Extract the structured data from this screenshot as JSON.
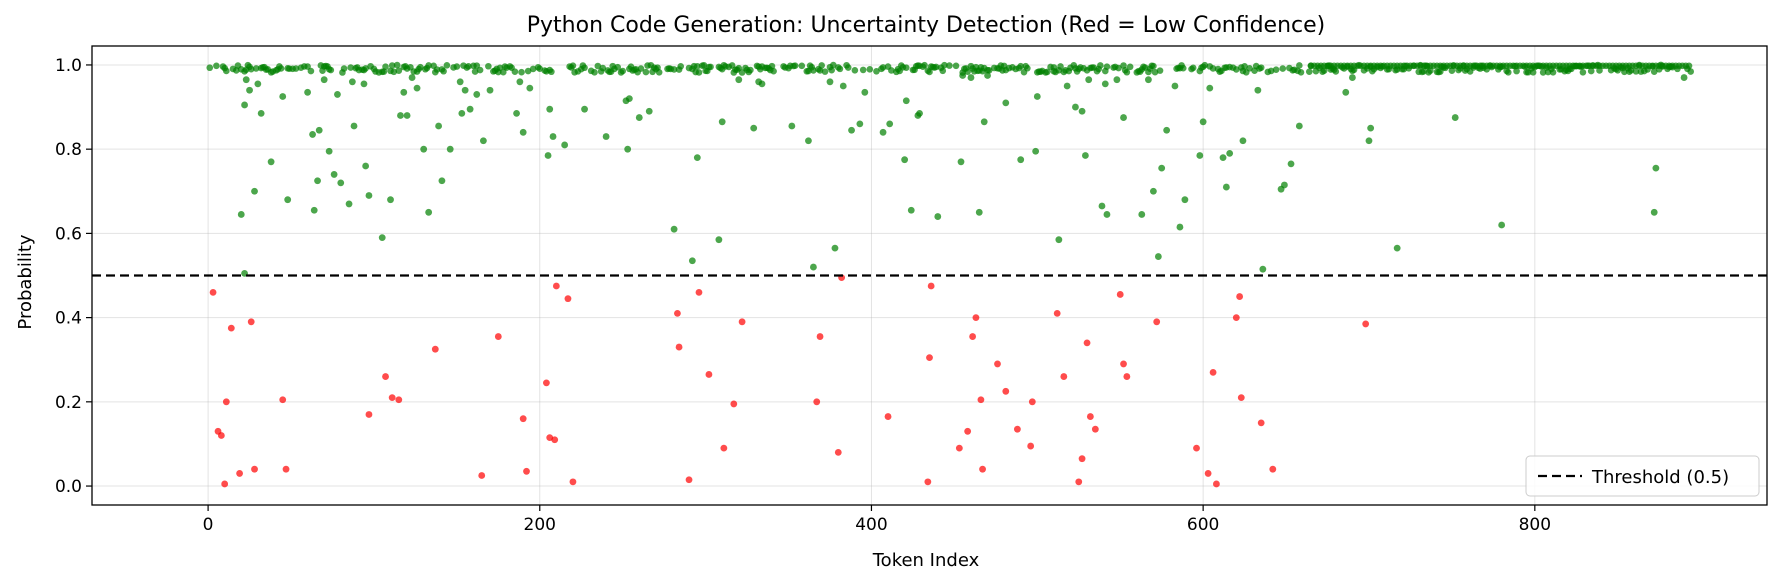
{
  "chart_data": {
    "type": "scatter",
    "title": "Python Code Generation: Uncertainty Detection (Red = Low Confidence)",
    "xlabel": "Token Index",
    "ylabel": "Probability",
    "xlim": [
      -70,
      940
    ],
    "ylim": [
      -0.045,
      1.045
    ],
    "xticks": [
      0,
      200,
      400,
      600,
      800
    ],
    "yticks": [
      0.0,
      0.2,
      0.4,
      0.6,
      0.8,
      1.0
    ],
    "xtick_labels": [
      "0",
      "200",
      "400",
      "600",
      "800"
    ],
    "ytick_labels": [
      "0.0",
      "0.2",
      "0.4",
      "0.6",
      "0.8",
      "1.0"
    ],
    "grid": true,
    "threshold": {
      "value": 0.5,
      "label": "Threshold (0.5)",
      "style": "dashed",
      "color": "#000000"
    },
    "legend": {
      "placement": "lower-right",
      "entries": [
        "Threshold (0.5)"
      ]
    },
    "colors": {
      "high": "#008000",
      "low": "#ff0000"
    },
    "point_count": 900,
    "series": [
      {
        "color": "#008000",
        "points": [
          [
            22,
            0.905
          ],
          [
            23,
            0.965
          ],
          [
            25,
            0.94
          ],
          [
            28,
            0.7
          ],
          [
            30,
            0.955
          ],
          [
            32,
            0.885
          ],
          [
            38,
            0.77
          ],
          [
            45,
            0.925
          ],
          [
            48,
            0.68
          ],
          [
            20,
            0.645
          ],
          [
            22,
            0.505
          ],
          [
            60,
            0.935
          ],
          [
            63,
            0.835
          ],
          [
            64,
            0.655
          ],
          [
            66,
            0.725
          ],
          [
            67,
            0.845
          ],
          [
            70,
            0.965
          ],
          [
            73,
            0.795
          ],
          [
            76,
            0.74
          ],
          [
            78,
            0.93
          ],
          [
            80,
            0.72
          ],
          [
            85,
            0.67
          ],
          [
            87,
            0.96
          ],
          [
            88,
            0.855
          ],
          [
            94,
            0.955
          ],
          [
            95,
            0.76
          ],
          [
            97,
            0.69
          ],
          [
            105,
            0.59
          ],
          [
            110,
            0.68
          ],
          [
            116,
            0.88
          ],
          [
            118,
            0.935
          ],
          [
            120,
            0.88
          ],
          [
            123,
            0.97
          ],
          [
            126,
            0.945
          ],
          [
            130,
            0.8
          ],
          [
            133,
            0.65
          ],
          [
            139,
            0.855
          ],
          [
            141,
            0.725
          ],
          [
            146,
            0.8
          ],
          [
            152,
            0.96
          ],
          [
            153,
            0.885
          ],
          [
            155,
            0.94
          ],
          [
            158,
            0.895
          ],
          [
            162,
            0.93
          ],
          [
            166,
            0.82
          ],
          [
            170,
            0.94
          ],
          [
            186,
            0.885
          ],
          [
            188,
            0.96
          ],
          [
            190,
            0.84
          ],
          [
            194,
            0.945
          ],
          [
            205,
            0.785
          ],
          [
            206,
            0.895
          ],
          [
            208,
            0.83
          ],
          [
            215,
            0.81
          ],
          [
            227,
            0.895
          ],
          [
            240,
            0.83
          ],
          [
            253,
            0.8
          ],
          [
            252,
            0.915
          ],
          [
            254,
            0.92
          ],
          [
            260,
            0.875
          ],
          [
            266,
            0.89
          ],
          [
            281,
            0.61
          ],
          [
            292,
            0.535
          ],
          [
            295,
            0.78
          ],
          [
            308,
            0.585
          ],
          [
            310,
            0.865
          ],
          [
            320,
            0.965
          ],
          [
            329,
            0.85
          ],
          [
            332,
            0.96
          ],
          [
            334,
            0.955
          ],
          [
            352,
            0.855
          ],
          [
            362,
            0.82
          ],
          [
            365,
            0.52
          ],
          [
            375,
            0.96
          ],
          [
            378,
            0.565
          ],
          [
            383,
            0.95
          ],
          [
            388,
            0.845
          ],
          [
            393,
            0.86
          ],
          [
            396,
            0.935
          ],
          [
            407,
            0.84
          ],
          [
            411,
            0.86
          ],
          [
            420,
            0.775
          ],
          [
            421,
            0.915
          ],
          [
            424,
            0.655
          ],
          [
            428,
            0.88
          ],
          [
            429,
            0.885
          ],
          [
            440,
            0.64
          ],
          [
            454,
            0.77
          ],
          [
            455,
            0.975
          ],
          [
            460,
            0.97
          ],
          [
            465,
            0.65
          ],
          [
            468,
            0.865
          ],
          [
            470,
            0.975
          ],
          [
            481,
            0.91
          ],
          [
            490,
            0.775
          ],
          [
            499,
            0.795
          ],
          [
            500,
            0.925
          ],
          [
            510,
            0.985
          ],
          [
            513,
            0.585
          ],
          [
            518,
            0.95
          ],
          [
            523,
            0.9
          ],
          [
            527,
            0.89
          ],
          [
            529,
            0.785
          ],
          [
            531,
            0.965
          ],
          [
            539,
            0.665
          ],
          [
            541,
            0.955
          ],
          [
            542,
            0.645
          ],
          [
            548,
            0.965
          ],
          [
            552,
            0.875
          ],
          [
            563,
            0.645
          ],
          [
            567,
            0.965
          ],
          [
            570,
            0.7
          ],
          [
            573,
            0.545
          ],
          [
            575,
            0.755
          ],
          [
            578,
            0.845
          ],
          [
            583,
            0.95
          ],
          [
            586,
            0.615
          ],
          [
            589,
            0.68
          ],
          [
            598,
            0.785
          ],
          [
            600,
            0.865
          ],
          [
            604,
            0.945
          ],
          [
            612,
            0.78
          ],
          [
            614,
            0.71
          ],
          [
            616,
            0.79
          ],
          [
            624,
            0.82
          ],
          [
            633,
            0.94
          ],
          [
            636,
            0.515
          ],
          [
            647,
            0.705
          ],
          [
            649,
            0.715
          ],
          [
            653,
            0.765
          ],
          [
            658,
            0.855
          ],
          [
            686,
            0.935
          ],
          [
            690,
            0.97
          ],
          [
            700,
            0.82
          ],
          [
            701,
            0.85
          ],
          [
            717,
            0.565
          ],
          [
            752,
            0.875
          ],
          [
            780,
            0.62
          ],
          [
            872,
            0.65
          ],
          [
            873,
            0.755
          ],
          [
            890,
            0.97
          ]
        ]
      },
      {
        "color": "#ff0000",
        "points": [
          [
            3,
            0.46
          ],
          [
            6,
            0.13
          ],
          [
            8,
            0.12
          ],
          [
            10,
            0.005
          ],
          [
            11,
            0.2
          ],
          [
            14,
            0.375
          ],
          [
            19,
            0.03
          ],
          [
            26,
            0.39
          ],
          [
            28,
            0.04
          ],
          [
            45,
            0.205
          ],
          [
            47,
            0.04
          ],
          [
            97,
            0.17
          ],
          [
            107,
            0.26
          ],
          [
            111,
            0.21
          ],
          [
            115,
            0.205
          ],
          [
            137,
            0.325
          ],
          [
            165,
            0.025
          ],
          [
            175,
            0.355
          ],
          [
            190,
            0.16
          ],
          [
            192,
            0.035
          ],
          [
            204,
            0.245
          ],
          [
            206,
            0.115
          ],
          [
            209,
            0.11
          ],
          [
            210,
            0.475
          ],
          [
            217,
            0.445
          ],
          [
            220,
            0.01
          ],
          [
            283,
            0.41
          ],
          [
            284,
            0.33
          ],
          [
            290,
            0.015
          ],
          [
            296,
            0.46
          ],
          [
            302,
            0.265
          ],
          [
            311,
            0.09
          ],
          [
            317,
            0.195
          ],
          [
            322,
            0.39
          ],
          [
            367,
            0.2
          ],
          [
            369,
            0.355
          ],
          [
            380,
            0.08
          ],
          [
            382,
            0.495
          ],
          [
            410,
            0.165
          ],
          [
            434,
            0.01
          ],
          [
            435,
            0.305
          ],
          [
            436,
            0.475
          ],
          [
            453,
            0.09
          ],
          [
            458,
            0.13
          ],
          [
            461,
            0.355
          ],
          [
            463,
            0.4
          ],
          [
            466,
            0.205
          ],
          [
            467,
            0.04
          ],
          [
            476,
            0.29
          ],
          [
            481,
            0.225
          ],
          [
            488,
            0.135
          ],
          [
            496,
            0.095
          ],
          [
            497,
            0.2
          ],
          [
            512,
            0.41
          ],
          [
            516,
            0.26
          ],
          [
            525,
            0.01
          ],
          [
            527,
            0.065
          ],
          [
            530,
            0.34
          ],
          [
            532,
            0.165
          ],
          [
            535,
            0.135
          ],
          [
            550,
            0.455
          ],
          [
            552,
            0.29
          ],
          [
            554,
            0.26
          ],
          [
            572,
            0.39
          ],
          [
            596,
            0.09
          ],
          [
            603,
            0.03
          ],
          [
            606,
            0.27
          ],
          [
            608,
            0.005
          ],
          [
            620,
            0.4
          ],
          [
            622,
            0.45
          ],
          [
            623,
            0.21
          ],
          [
            635,
            0.15
          ],
          [
            642,
            0.04
          ],
          [
            698,
            0.385
          ]
        ]
      }
    ]
  }
}
